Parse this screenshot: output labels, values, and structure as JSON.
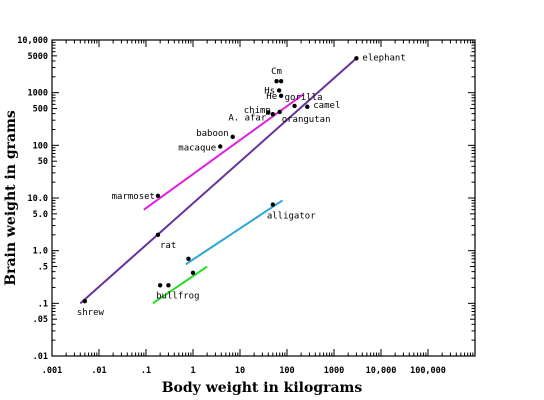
{
  "chart_data": {
    "type": "scatter",
    "title": "",
    "xlabel": "Body weight in kilograms",
    "ylabel": "Brain weight in grams",
    "xscale": "log",
    "yscale": "log",
    "xlim": [
      0.001,
      1000000
    ],
    "ylim": [
      0.01,
      10000
    ],
    "grid": false,
    "legend": "none",
    "x_tick_labels": [
      {
        "value": 0.001,
        "label": ".001"
      },
      {
        "value": 0.01,
        "label": ".01"
      },
      {
        "value": 0.1,
        "label": ".1"
      },
      {
        "value": 1,
        "label": "1"
      },
      {
        "value": 10,
        "label": "10"
      },
      {
        "value": 100,
        "label": "100"
      },
      {
        "value": 1000,
        "label": "1000"
      },
      {
        "value": 10000,
        "label": "10,000"
      },
      {
        "value": 100000,
        "label": "100,000"
      }
    ],
    "y_tick_labels": [
      {
        "value": 10000,
        "label": "10,000"
      },
      {
        "value": 5000,
        "label": "5000"
      },
      {
        "value": 1000,
        "label": "1000"
      },
      {
        "value": 500,
        "label": "500"
      },
      {
        "value": 100,
        "label": "100"
      },
      {
        "value": 50,
        "label": "50"
      },
      {
        "value": 10,
        "label": "10.0"
      },
      {
        "value": 5,
        "label": "5.0"
      },
      {
        "value": 1,
        "label": "1.0"
      },
      {
        "value": 0.5,
        "label": ".5"
      },
      {
        "value": 0.1,
        "label": ".1"
      },
      {
        "value": 0.05,
        "label": ".05"
      },
      {
        "value": 0.01,
        "label": ".01"
      }
    ],
    "points": [
      {
        "label": "shrew",
        "x": 0.005,
        "y": 0.11
      },
      {
        "label": "rat",
        "x": 0.18,
        "y": 2.0
      },
      {
        "label": "marmoset",
        "x": 0.18,
        "y": 11
      },
      {
        "label": "macaque",
        "x": 3.8,
        "y": 95
      },
      {
        "label": "baboon",
        "x": 7.0,
        "y": 145
      },
      {
        "label": "A. afar",
        "x": 40,
        "y": 420
      },
      {
        "label": "chimp",
        "x": 50,
        "y": 390
      },
      {
        "label": "orangutan",
        "x": 70,
        "y": 430
      },
      {
        "label": "gorilla",
        "x": 145,
        "y": 560
      },
      {
        "label": "camel",
        "x": 270,
        "y": 540
      },
      {
        "label": "He",
        "x": 75,
        "y": 870
      },
      {
        "label": "Hs",
        "x": 68,
        "y": 1100
      },
      {
        "label": "Cm",
        "x": 60,
        "y": 1650
      },
      {
        "label": "",
        "x": 75,
        "y": 1650
      },
      {
        "label": "elephant",
        "x": 3000,
        "y": 4500
      },
      {
        "label": "alligator",
        "x": 50,
        "y": 7.5
      },
      {
        "label": "",
        "x": 0.8,
        "y": 0.7
      },
      {
        "label": "",
        "x": 1.0,
        "y": 0.38
      },
      {
        "label": "bullfrog",
        "x": 0.2,
        "y": 0.22
      },
      {
        "label": "",
        "x": 0.3,
        "y": 0.22
      }
    ],
    "lines": [
      {
        "color": "#66339a",
        "from": [
          0.004,
          0.1
        ],
        "to": [
          3000,
          4500
        ]
      },
      {
        "color": "#e020e0",
        "from": [
          0.09,
          6
        ],
        "to": [
          230,
          950
        ]
      },
      {
        "color": "#2aa6d8",
        "from": [
          0.7,
          0.55
        ],
        "to": [
          80,
          9
        ]
      },
      {
        "color": "#22dd22",
        "from": [
          0.14,
          0.1
        ],
        "to": [
          2.0,
          0.5
        ]
      }
    ]
  }
}
